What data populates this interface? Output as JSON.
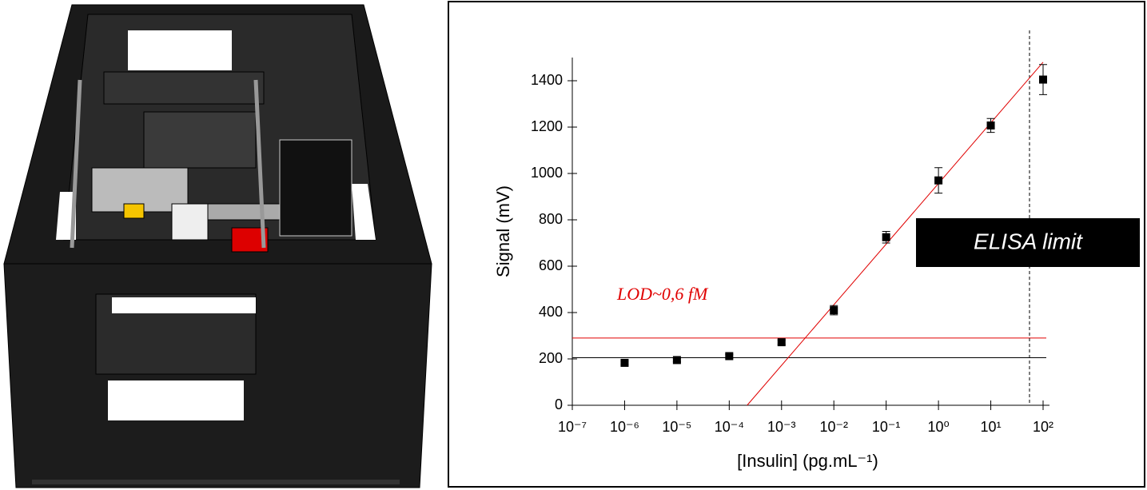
{
  "chart_data": {
    "type": "scatter",
    "x_label": "[Insulin] (pg.mL⁻¹)",
    "y_label": "Signal (mV)",
    "xlim": [
      1e-07,
      100
    ],
    "xscale": "log",
    "xticks": [
      {
        "value": 1e-07,
        "label": "10⁻⁷"
      },
      {
        "value": 1e-06,
        "label": "10⁻⁶"
      },
      {
        "value": 1e-05,
        "label": "10⁻⁵"
      },
      {
        "value": 0.0001,
        "label": "10⁻⁴"
      },
      {
        "value": 0.001,
        "label": "10⁻³"
      },
      {
        "value": 0.01,
        "label": "10⁻²"
      },
      {
        "value": 0.1,
        "label": "10⁻¹"
      },
      {
        "value": 1,
        "label": "10⁰"
      },
      {
        "value": 10,
        "label": "10¹"
      },
      {
        "value": 100,
        "label": "10²"
      }
    ],
    "ylim": [
      0,
      1500
    ],
    "yticks": [
      0,
      200,
      400,
      600,
      800,
      1000,
      1200,
      1400
    ],
    "series": [
      {
        "color": "#000000",
        "x": [
          1e-06,
          1e-05,
          0.0001,
          0.001,
          0.01,
          0.1,
          1,
          10,
          100
        ],
        "values": [
          183,
          195,
          212,
          272,
          410,
          725,
          970,
          1207,
          1405
        ],
        "errors": [
          8,
          8,
          8,
          10,
          20,
          25,
          55,
          30,
          65
        ]
      }
    ],
    "fit_line": {
      "color": "#e00000",
      "x": [
        0.00022,
        100
      ],
      "y": [
        0,
        1480
      ]
    },
    "hlines": [
      {
        "y": 290,
        "color": "#e00000"
      },
      {
        "y": 205,
        "color": "#000000"
      }
    ],
    "vline": {
      "x": 55,
      "color": "#000000",
      "dashed": true
    },
    "annotations": [
      {
        "text": "LOD~0,6 fM",
        "color": "#e00000"
      },
      {
        "text": "ELISA limit",
        "color": "#ffffff",
        "box": "#000000"
      }
    ]
  }
}
